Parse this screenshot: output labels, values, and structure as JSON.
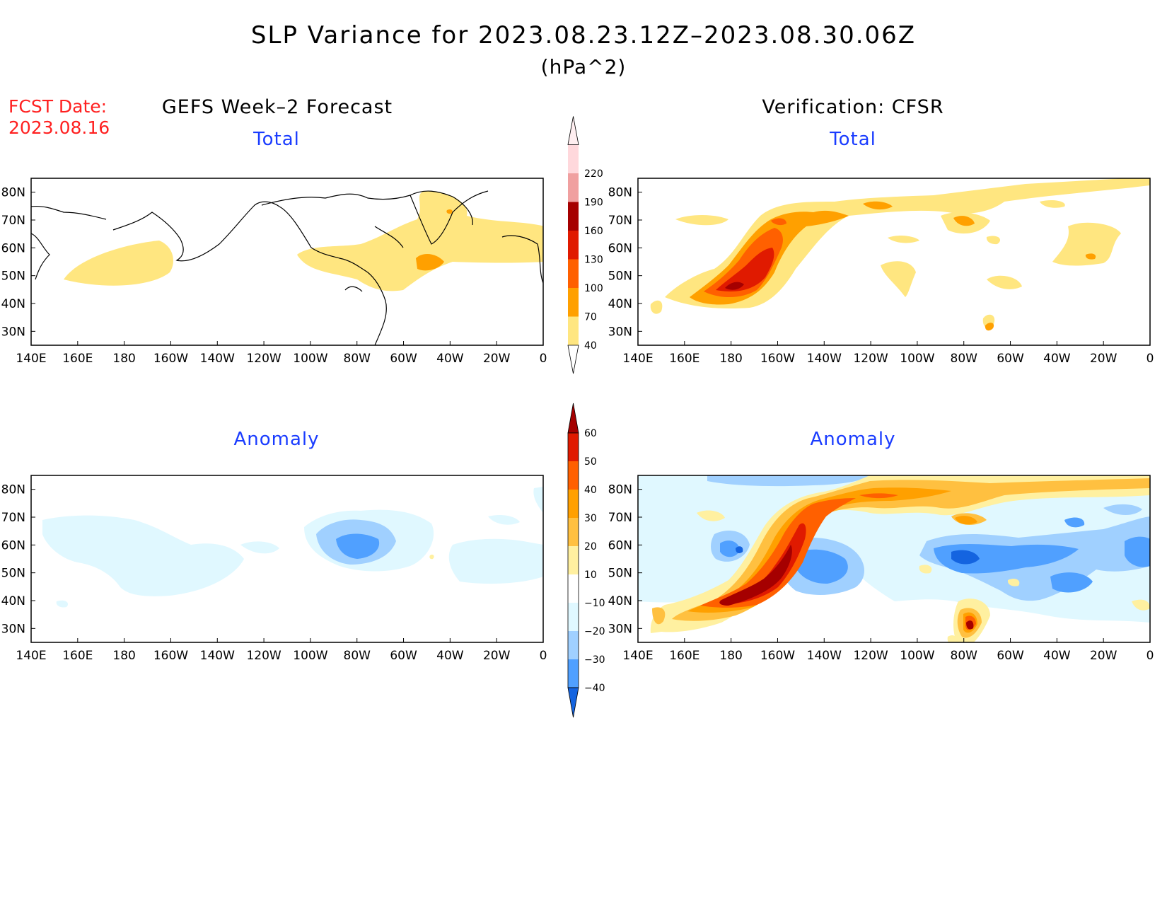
{
  "title": "SLP Variance for 2023.08.23.12Z–2023.08.30.06Z",
  "units": "(hPa^2)",
  "fcst_date_label": "FCST Date:",
  "fcst_date": "2023.08.16",
  "left_column_title": "GEFS Week–2 Forecast",
  "right_column_title": "Verification: CFSR",
  "panels": {
    "forecast_total": {
      "label": "Total"
    },
    "verification_total": {
      "label": "Total"
    },
    "forecast_anomaly": {
      "label": "Anomaly"
    },
    "verification_anomaly": {
      "label": "Anomaly"
    }
  },
  "map_axes": {
    "lon_ticks": [
      "140E",
      "160E",
      "180",
      "160W",
      "140W",
      "120W",
      "100W",
      "80W",
      "60W",
      "40W",
      "20W",
      "0"
    ],
    "lat_ticks": [
      "80N",
      "70N",
      "60N",
      "50N",
      "40N",
      "30N"
    ],
    "lon_range": [
      140,
      360
    ],
    "lat_range": [
      25,
      85
    ]
  },
  "colorbars": {
    "total": {
      "levels": [
        "40",
        "70",
        "100",
        "130",
        "160",
        "190",
        "220"
      ],
      "colors": [
        "#ffe680",
        "#ffa000",
        "#ff6000",
        "#e01a00",
        "#a50000",
        "#f0a0a0",
        "#ffd8dc"
      ]
    },
    "anomaly": {
      "levels": [
        "60",
        "50",
        "40",
        "30",
        "20",
        "10",
        "−10",
        "−20",
        "−30",
        "−40"
      ],
      "colors": [
        "#a50000",
        "#e01a00",
        "#ff6000",
        "#ffa000",
        "#ffc040",
        "#fff0a0",
        "#ffffff",
        "#e0f8ff",
        "#a0d0ff",
        "#50a0ff",
        "#1464e0"
      ]
    }
  },
  "colors": {
    "title_red": "#ff2020",
    "label_blue": "#1a3cff"
  }
}
